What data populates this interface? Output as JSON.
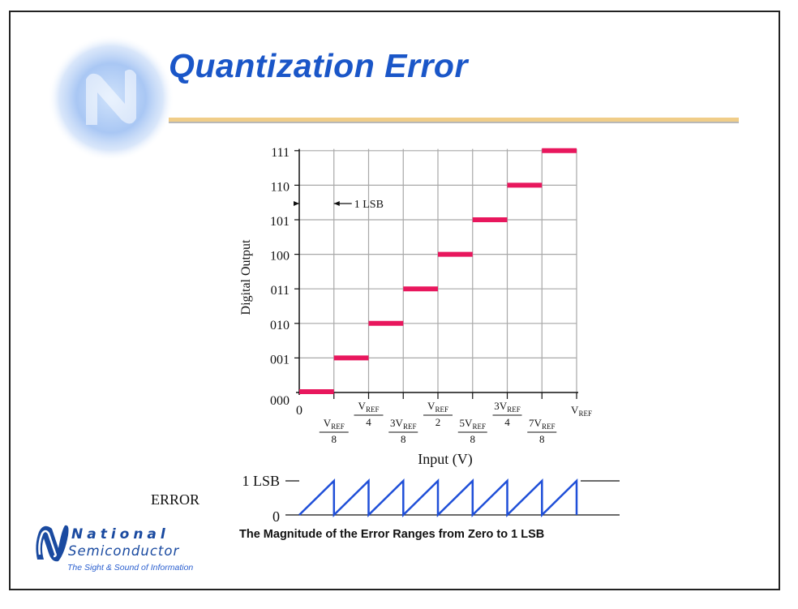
{
  "slide": {
    "title": "Quantization Error",
    "caption": "The Magnitude of the Error Ranges from Zero to 1 LSB",
    "error_label": "ERROR"
  },
  "logo": {
    "line1": "National",
    "line2": "Semiconductor",
    "tagline": "The Sight & Sound of Information"
  },
  "colors": {
    "title": "#1a56c8",
    "step": "#e8175d",
    "error_wave": "#1f4fd8",
    "rule": "#f0cd88"
  },
  "chart_data": [
    {
      "type": "line",
      "xlabel": "Input (V)",
      "ylabel": "Digital Output",
      "y_tick_labels": [
        "000",
        "001",
        "010",
        "011",
        "100",
        "101",
        "110",
        "111"
      ],
      "x_tick_labels": [
        {
          "num": "0",
          "den": ""
        },
        {
          "num": "V_REF",
          "den": "8"
        },
        {
          "num": "V_REF",
          "den": "4"
        },
        {
          "num": "3V_REF",
          "den": "8"
        },
        {
          "num": "V_REF",
          "den": "2"
        },
        {
          "num": "5V_REF",
          "den": "8"
        },
        {
          "num": "3V_REF",
          "den": "4"
        },
        {
          "num": "7V_REF",
          "den": "8"
        },
        {
          "num": "V_REF",
          "den": ""
        }
      ],
      "x_units": "fraction of V_REF",
      "xlim": [
        0,
        1
      ],
      "grid": true,
      "annotation": "1 LSB",
      "steps": [
        {
          "x_start": 0,
          "x_end": 0.125,
          "code": 0
        },
        {
          "x_start": 0.125,
          "x_end": 0.25,
          "code": 1
        },
        {
          "x_start": 0.25,
          "x_end": 0.375,
          "code": 2
        },
        {
          "x_start": 0.375,
          "x_end": 0.5,
          "code": 3
        },
        {
          "x_start": 0.5,
          "x_end": 0.625,
          "code": 4
        },
        {
          "x_start": 0.625,
          "x_end": 0.75,
          "code": 5
        },
        {
          "x_start": 0.75,
          "x_end": 0.875,
          "code": 6
        },
        {
          "x_start": 0.875,
          "x_end": 1.0,
          "code": 7
        }
      ]
    },
    {
      "type": "line",
      "title": "",
      "y_tick_labels": [
        "0",
        "1 LSB"
      ],
      "ylim": [
        0,
        1
      ],
      "x_units": "fraction of V_REF",
      "xlim": [
        0,
        1
      ],
      "sawtooth_periods": 8,
      "points": [
        [
          0,
          0
        ],
        [
          0.125,
          1
        ],
        [
          0.125,
          0
        ],
        [
          0.25,
          1
        ],
        [
          0.25,
          0
        ],
        [
          0.375,
          1
        ],
        [
          0.375,
          0
        ],
        [
          0.5,
          1
        ],
        [
          0.5,
          0
        ],
        [
          0.625,
          1
        ],
        [
          0.625,
          0
        ],
        [
          0.75,
          1
        ],
        [
          0.75,
          0
        ],
        [
          0.875,
          1
        ],
        [
          0.875,
          0
        ],
        [
          1.0,
          1
        ],
        [
          1.0,
          0
        ]
      ]
    }
  ]
}
